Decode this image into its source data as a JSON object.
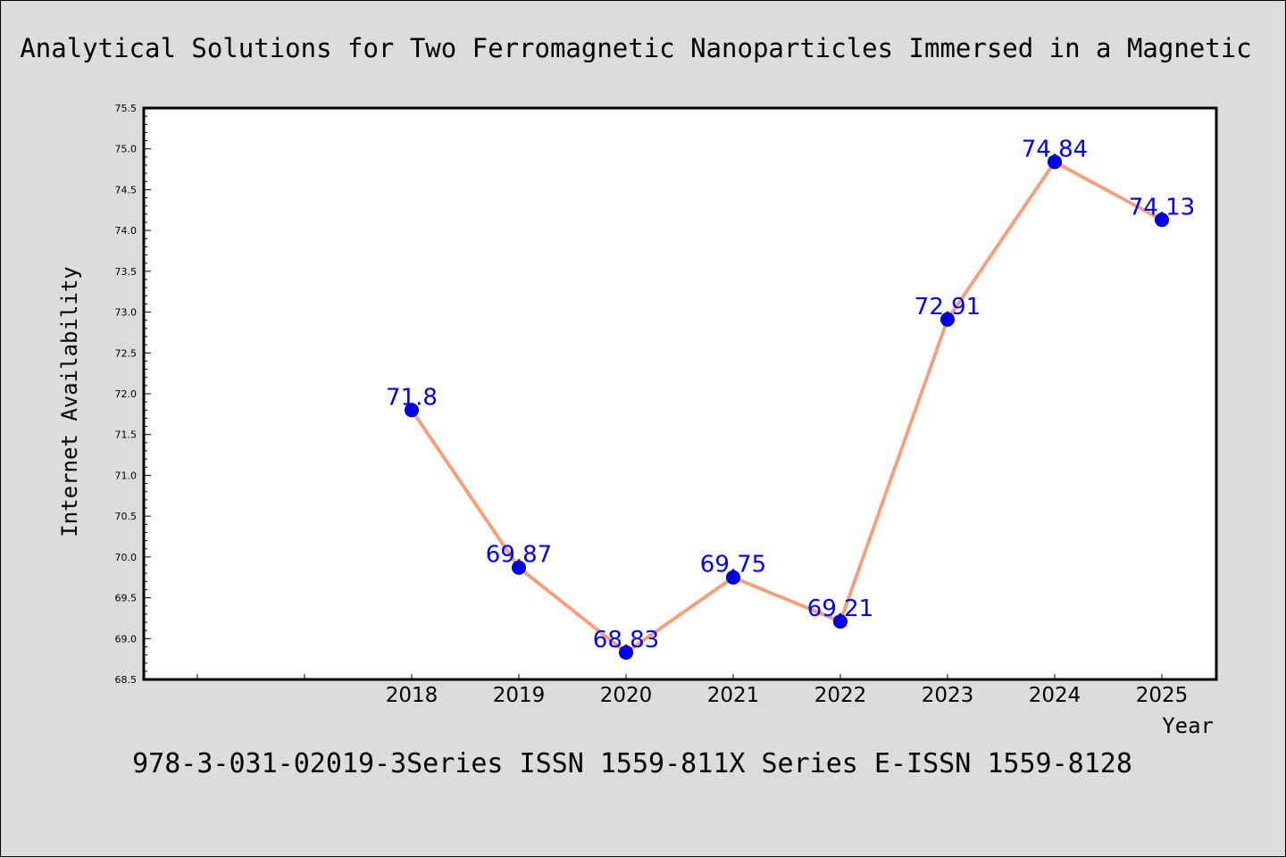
{
  "colors": {
    "background": "#dcdcdc",
    "plot_background": "#ffffff",
    "line": "#f4a07c",
    "marker": "#0000ee",
    "data_label": "#0000ee"
  },
  "chart_data": {
    "type": "line",
    "title": "Analytical Solutions for Two Ferromagnetic Nanoparticles Immersed in a Magnetic",
    "footer": "978-3-031-02019-3Series ISSN 1559-811X Series E-ISSN 1559-8128",
    "xlabel": "Year",
    "ylabel": "Internet Availability",
    "categories": [
      "2018",
      "2019",
      "2020",
      "2021",
      "2022",
      "2023",
      "2024",
      "2025"
    ],
    "values": [
      71.8,
      69.87,
      68.83,
      69.75,
      69.21,
      72.91,
      74.84,
      74.13
    ],
    "data_labels": [
      "71.8",
      "69.87",
      "68.83",
      "69.75",
      "69.21",
      "72.91",
      "74.84",
      "74.13"
    ],
    "ylim": [
      68.5,
      75.5
    ],
    "yticks": [
      "68.5",
      "69.0",
      "69.5",
      "70.0",
      "70.5",
      "71.0",
      "71.5",
      "72.0",
      "72.5",
      "73.0",
      "73.5",
      "74.0",
      "74.5",
      "75.0",
      "75.5"
    ],
    "grid": false,
    "legend": "none"
  }
}
